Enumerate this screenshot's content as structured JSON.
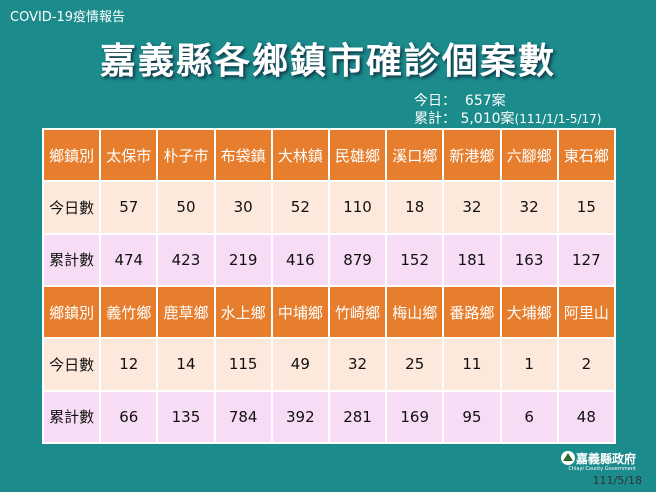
{
  "header": {
    "label": "COVID-19疫情報告",
    "title": "嘉義縣各鄉鎮市確診個案數"
  },
  "summary": {
    "today_label": "今日：",
    "today": "657案",
    "total_label": "累計：",
    "total": "5,010案",
    "period": "(111/1/1-5/17)"
  },
  "table": {
    "rows": [
      [
        "鄉鎮別",
        "太保市",
        "朴子市",
        "布袋鎮",
        "大林鎮",
        "民雄鄉",
        "溪口鄉",
        "新港鄉",
        "六腳鄉",
        "東石鄉"
      ],
      [
        "今日數",
        57,
        50,
        30,
        52,
        110,
        18,
        32,
        32,
        15
      ],
      [
        "累計數",
        474,
        423,
        219,
        416,
        879,
        152,
        181,
        163,
        127
      ],
      [
        "鄉鎮別",
        "義竹鄉",
        "鹿草鄉",
        "水上鄉",
        "中埔鄉",
        "竹崎鄉",
        "梅山鄉",
        "番路鄉",
        "大埔鄉",
        "阿里山"
      ],
      [
        "今日數",
        12,
        14,
        115,
        49,
        32,
        25,
        11,
        1,
        2
      ],
      [
        "累計數",
        66,
        135,
        784,
        392,
        281,
        169,
        95,
        6,
        48
      ]
    ]
  },
  "footer": {
    "org": "嘉義縣政府",
    "org_en": "Chiayi County Government",
    "date": "111/5/18"
  }
}
